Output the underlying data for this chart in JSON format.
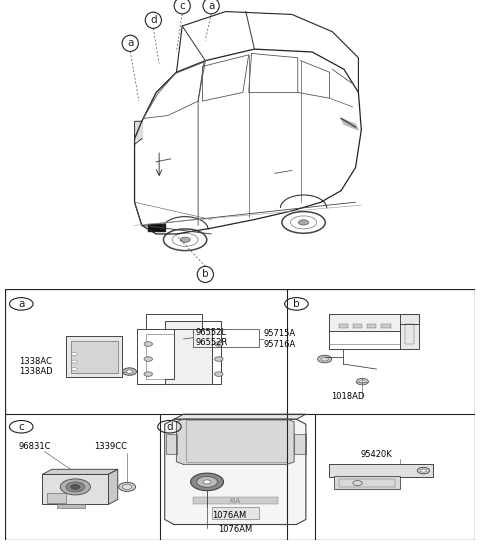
{
  "bg_color": "#ffffff",
  "border_color": "#000000",
  "line_color": "#333333",
  "part_label_fontsize": 6.0,
  "panel_label_fontsize": 7.5,
  "panels": {
    "a": {
      "label": "a",
      "parts": [
        "96552L",
        "96552R",
        "95715A",
        "95716A",
        "1338AC",
        "1338AD"
      ]
    },
    "b": {
      "label": "b",
      "parts": [
        "1018AD"
      ]
    },
    "c": {
      "label": "c",
      "parts": [
        "96831C",
        "1339CC"
      ]
    },
    "d": {
      "label": "d",
      "parts": [
        "1076AM"
      ]
    },
    "e": {
      "parts": [
        "95420K"
      ]
    }
  }
}
